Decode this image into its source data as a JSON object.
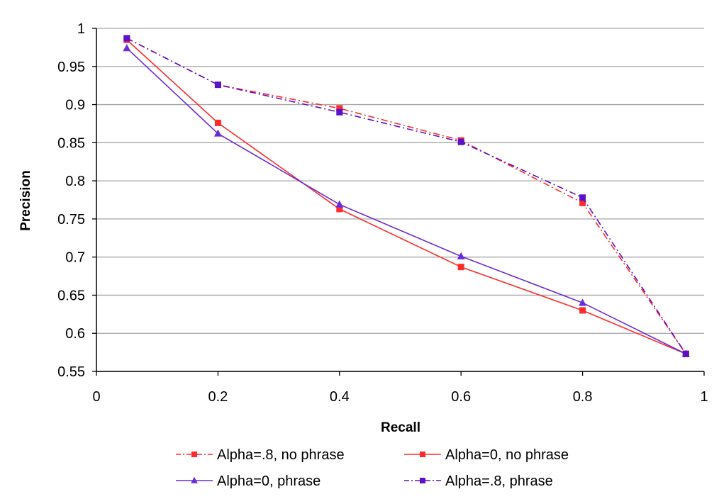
{
  "chart_data": {
    "type": "line",
    "title": "",
    "xlabel": "Recall",
    "ylabel": "Precision",
    "xlim": [
      0,
      1
    ],
    "ylim": [
      0.55,
      1
    ],
    "x_ticks": [
      "0",
      "0.2",
      "0.4",
      "0.6",
      "0.8",
      "1"
    ],
    "y_ticks": [
      "0.55",
      "0.6",
      "0.65",
      "0.7",
      "0.75",
      "0.8",
      "0.85",
      "0.9",
      "0.95",
      "1"
    ],
    "grid": "horizontal",
    "legend_position": "bottom",
    "series": [
      {
        "name": "Alpha=.8, no phrase",
        "color": "#ff2a2a",
        "line_style": "dash-dot",
        "marker": "square",
        "x": [
          0.05,
          0.2,
          0.4,
          0.6,
          0.8,
          0.97
        ],
        "y": [
          0.987,
          0.926,
          0.895,
          0.853,
          0.771,
          0.573
        ]
      },
      {
        "name": "Alpha=0, no phrase",
        "color": "#ff2a2a",
        "line_style": "solid",
        "marker": "square",
        "x": [
          0.05,
          0.2,
          0.4,
          0.6,
          0.8,
          0.97
        ],
        "y": [
          0.985,
          0.876,
          0.763,
          0.687,
          0.63,
          0.573
        ]
      },
      {
        "name": "Alpha=0, phrase",
        "color": "#6a2bd9",
        "line_style": "solid",
        "marker": "triangle",
        "x": [
          0.05,
          0.2,
          0.4,
          0.6,
          0.8,
          0.97
        ],
        "y": [
          0.974,
          0.862,
          0.769,
          0.701,
          0.64,
          0.573
        ]
      },
      {
        "name": "Alpha=.8, phrase",
        "color": "#5b10c9",
        "line_style": "dash-dot",
        "marker": "square",
        "x": [
          0.05,
          0.2,
          0.4,
          0.6,
          0.8,
          0.97
        ],
        "y": [
          0.987,
          0.926,
          0.89,
          0.851,
          0.778,
          0.573
        ]
      }
    ]
  }
}
